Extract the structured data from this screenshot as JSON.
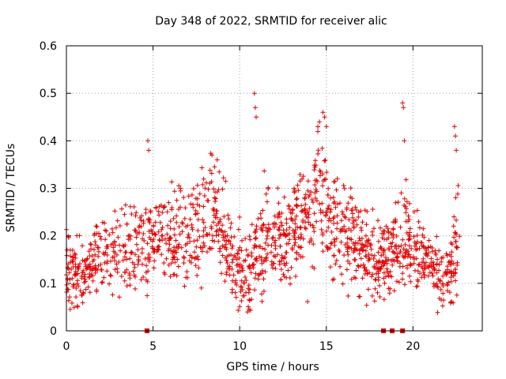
{
  "chart_data": {
    "type": "scatter",
    "title": "Day 348 of 2022, SRMTID for receiver alic",
    "xlabel": "GPS time / hours",
    "ylabel": "SRMTID / TECUs",
    "xlim": [
      0,
      24
    ],
    "ylim": [
      0,
      0.6
    ],
    "x_ticks": [
      0,
      5,
      10,
      15,
      20
    ],
    "x_tick_labels": [
      "0",
      "5",
      "10",
      "15",
      "20"
    ],
    "y_ticks": [
      0,
      0.1,
      0.2,
      0.3,
      0.4,
      0.5,
      0.6
    ],
    "y_tick_labels": [
      "0",
      "0.1",
      "0.2",
      "0.3",
      "0.4",
      "0.5",
      "0.6"
    ],
    "grid": true,
    "marker": "plus",
    "color": "#e00000",
    "data_gaps_at_zero": [
      4.65,
      18.3,
      18.8,
      19.4
    ],
    "series": [
      {
        "name": "SRMTID",
        "profile": [
          [
            0.0,
            0.14,
            0.05
          ],
          [
            1.0,
            0.12,
            0.04
          ],
          [
            2.0,
            0.16,
            0.05
          ],
          [
            3.0,
            0.18,
            0.05
          ],
          [
            4.0,
            0.18,
            0.05
          ],
          [
            4.6,
            0.17,
            0.06
          ],
          [
            5.0,
            0.2,
            0.05
          ],
          [
            6.0,
            0.2,
            0.06
          ],
          [
            7.0,
            0.19,
            0.06
          ],
          [
            8.0,
            0.24,
            0.07
          ],
          [
            8.5,
            0.27,
            0.07
          ],
          [
            9.0,
            0.2,
            0.06
          ],
          [
            9.5,
            0.15,
            0.05
          ],
          [
            10.0,
            0.14,
            0.05
          ],
          [
            10.5,
            0.12,
            0.05
          ],
          [
            11.0,
            0.18,
            0.07
          ],
          [
            12.0,
            0.2,
            0.06
          ],
          [
            13.0,
            0.2,
            0.06
          ],
          [
            14.0,
            0.24,
            0.07
          ],
          [
            14.7,
            0.3,
            0.08
          ],
          [
            15.2,
            0.25,
            0.07
          ],
          [
            16.0,
            0.2,
            0.06
          ],
          [
            17.0,
            0.18,
            0.06
          ],
          [
            18.0,
            0.14,
            0.05
          ],
          [
            18.7,
            0.16,
            0.06
          ],
          [
            19.5,
            0.2,
            0.06
          ],
          [
            20.0,
            0.18,
            0.05
          ],
          [
            21.0,
            0.13,
            0.05
          ],
          [
            22.0,
            0.11,
            0.04
          ],
          [
            22.6,
            0.2,
            0.08
          ]
        ],
        "spikes": [
          [
            4.7,
            0.4
          ],
          [
            4.75,
            0.38
          ],
          [
            10.85,
            0.5
          ],
          [
            10.9,
            0.47
          ],
          [
            10.95,
            0.45
          ],
          [
            14.8,
            0.46
          ],
          [
            14.9,
            0.45
          ],
          [
            15.0,
            0.43
          ],
          [
            14.6,
            0.44
          ],
          [
            19.4,
            0.48
          ],
          [
            19.45,
            0.47
          ],
          [
            19.5,
            0.4
          ],
          [
            22.4,
            0.43
          ],
          [
            22.45,
            0.41
          ],
          [
            22.5,
            0.38
          ],
          [
            8.4,
            0.37
          ],
          [
            8.7,
            0.36
          ]
        ],
        "point_count": 1500,
        "x_range": [
          0.0,
          22.7
        ]
      }
    ]
  }
}
